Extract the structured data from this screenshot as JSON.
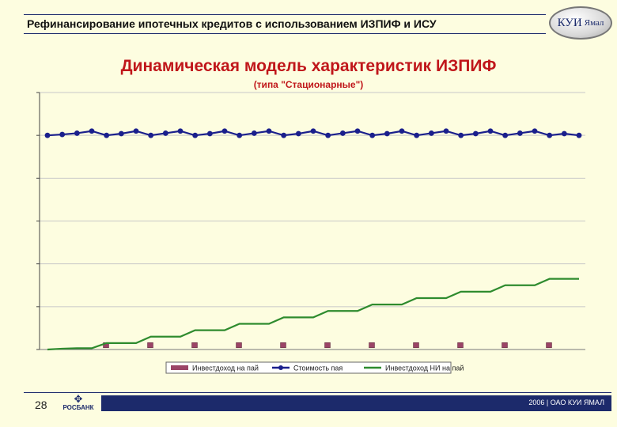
{
  "header": {
    "title": "Рефинансирование ипотечных кредитов с использованием ИЗПИФ и ИСУ"
  },
  "logo": {
    "text_main": "КУИ",
    "text_small": "Ямал"
  },
  "chart_data": {
    "type": "line",
    "title": "Динамическая модель характеристик ИЗПИФ",
    "subtitle": "(типа \"Стационарные\")",
    "y_scale": [
      0,
      6
    ],
    "x_count": 49,
    "series": [
      {
        "name": "Инвестдоход на пай",
        "kind": "bar-markers",
        "color": "#9b4466",
        "indices": [
          4,
          8,
          12,
          16,
          20,
          24,
          28,
          32,
          36,
          40,
          44
        ],
        "values": [
          0.05,
          0.05,
          0.05,
          0.05,
          0.05,
          0.05,
          0.05,
          0.05,
          0.05,
          0.05,
          0.05
        ]
      },
      {
        "name": "Стоимость пая",
        "kind": "line-dots",
        "color": "#1a1f8c",
        "values": [
          5.0,
          5.02,
          5.05,
          5.1,
          5.0,
          5.04,
          5.1,
          5.0,
          5.05,
          5.1,
          5.0,
          5.04,
          5.1,
          5.0,
          5.05,
          5.1,
          5.0,
          5.04,
          5.1,
          5.0,
          5.05,
          5.1,
          5.0,
          5.04,
          5.1,
          5.0,
          5.05,
          5.1,
          5.0,
          5.04,
          5.1,
          5.0,
          5.05,
          5.1,
          5.0,
          5.04,
          5.0
        ]
      },
      {
        "name": "Инвестдоход НИ на пай",
        "kind": "line",
        "color": "#2e8b2e",
        "values": [
          0,
          0.02,
          0.03,
          0.03,
          0.15,
          0.15,
          0.15,
          0.3,
          0.3,
          0.3,
          0.45,
          0.45,
          0.45,
          0.6,
          0.6,
          0.6,
          0.75,
          0.75,
          0.75,
          0.9,
          0.9,
          0.9,
          1.05,
          1.05,
          1.05,
          1.2,
          1.2,
          1.2,
          1.35,
          1.35,
          1.35,
          1.5,
          1.5,
          1.5,
          1.65,
          1.65,
          1.65
        ]
      }
    ],
    "grid": true,
    "legend_position": "bottom"
  },
  "footer": {
    "page_number": "28",
    "bank_name": "РОСБАНК",
    "text": "2006 | ОАО КУИ ЯМАЛ"
  }
}
